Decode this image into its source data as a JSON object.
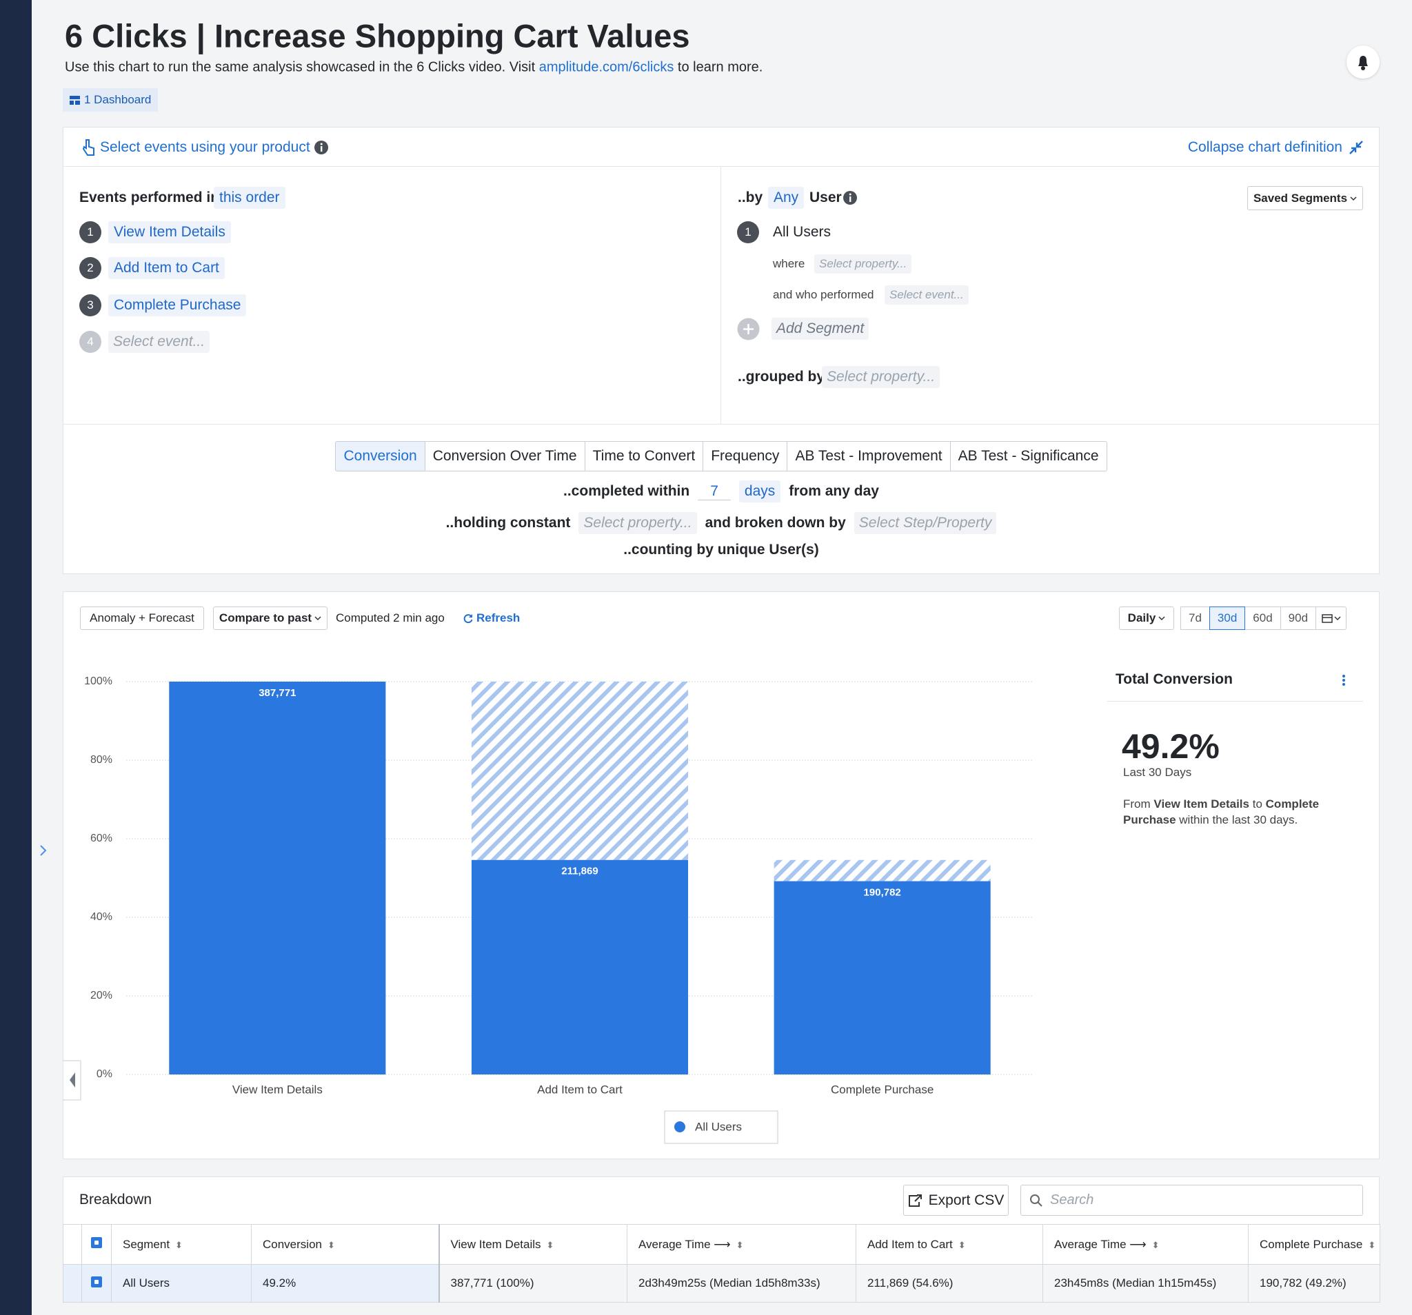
{
  "header": {
    "title": "6 Clicks | Increase Shopping Cart Values",
    "subtitle": "Use this chart to run the same analysis showcased in the 6 Clicks video. Visit",
    "link": "amplitude.com/6clicks",
    "subtitle_end": "to learn more.",
    "dashboard_badge": "1 Dashboard"
  },
  "definition": {
    "prompt": "Select events using your product",
    "collapse": "Collapse chart definition",
    "events_label": "Events performed in",
    "order": "this order",
    "steps": [
      {
        "number": "1",
        "event": "View Item Details"
      },
      {
        "number": "2",
        "event": "Add Item to Cart"
      },
      {
        "number": "3",
        "event": "Complete Purchase"
      },
      {
        "number": "4",
        "event": "Select event..."
      }
    ],
    "by_label": "..by",
    "by_any": "Any",
    "by_user": "User",
    "saved_segments": "Saved Segments",
    "segment": {
      "number": "1",
      "name": "All Users",
      "where": "where",
      "where_placeholder": "Select property...",
      "performed": "and who performed",
      "performed_placeholder": "Select event..."
    },
    "add_segment": "Add Segment",
    "grouped_by": "..grouped by",
    "grouped_placeholder": "Select property...",
    "tabs": [
      "Conversion",
      "Conversion Over Time",
      "Time to Convert",
      "Frequency",
      "AB Test - Improvement",
      "AB Test - Significance"
    ],
    "completed_within": "..completed within",
    "window": "7",
    "window_unit": "days",
    "from": "from any day",
    "holding_constant": "..holding constant",
    "holding_placeholder": "Select property...",
    "broken_down": "and broken down by",
    "broken_placeholder": "Select Step/Property",
    "counting": "..counting by unique User(s)"
  },
  "toolbar": {
    "anomaly": "Anomaly + Forecast",
    "compare": "Compare to past",
    "computed": "Computed 2 min ago",
    "refresh": "Refresh",
    "interval": "Daily",
    "ranges": [
      "7d",
      "30d",
      "60d",
      "90d"
    ]
  },
  "summary": {
    "title": "Total Conversion",
    "value": "49.2%",
    "period": "Last 30 Days",
    "from": "From",
    "from_event": "View Item Details",
    "to": "to",
    "to_event": "Complete Purchase",
    "within": "within the last 30 days."
  },
  "breakdown": {
    "title": "Breakdown",
    "export": "Export CSV",
    "search_placeholder": "Search",
    "columns": [
      "Segment",
      "Conversion",
      "View Item Details",
      "Average Time ⟶",
      "Add Item to Cart",
      "Average Time ⟶",
      "Complete Purchase"
    ],
    "rows": [
      [
        "All Users",
        "49.2%",
        "387,771 (100%)",
        "2d3h49m25s (Median 1d5h8m33s)",
        "211,869 (54.6%)",
        "23h45m8s (Median 1h15m45s)",
        "190,782 (49.2%)"
      ]
    ]
  },
  "chart_data": {
    "type": "bar",
    "categories": [
      "View Item Details",
      "Add Item to Cart",
      "Complete Purchase"
    ],
    "series": [
      {
        "name": "All Users",
        "color": "#2b77e0",
        "values": [
          100,
          54.6,
          49.2
        ],
        "bar_labels": [
          "387,771",
          "211,869",
          "190,782"
        ]
      }
    ],
    "dropoff_color": "#a9c6f1",
    "ylim": [
      0,
      100
    ],
    "yticks": [
      {
        "value": 0,
        "label": "0%"
      },
      {
        "value": 20,
        "label": "20%"
      },
      {
        "value": 40,
        "label": "40%"
      },
      {
        "value": 60,
        "label": "60%"
      },
      {
        "value": 80,
        "label": "80%"
      },
      {
        "value": 100,
        "label": "100%"
      }
    ],
    "grid": true
  }
}
